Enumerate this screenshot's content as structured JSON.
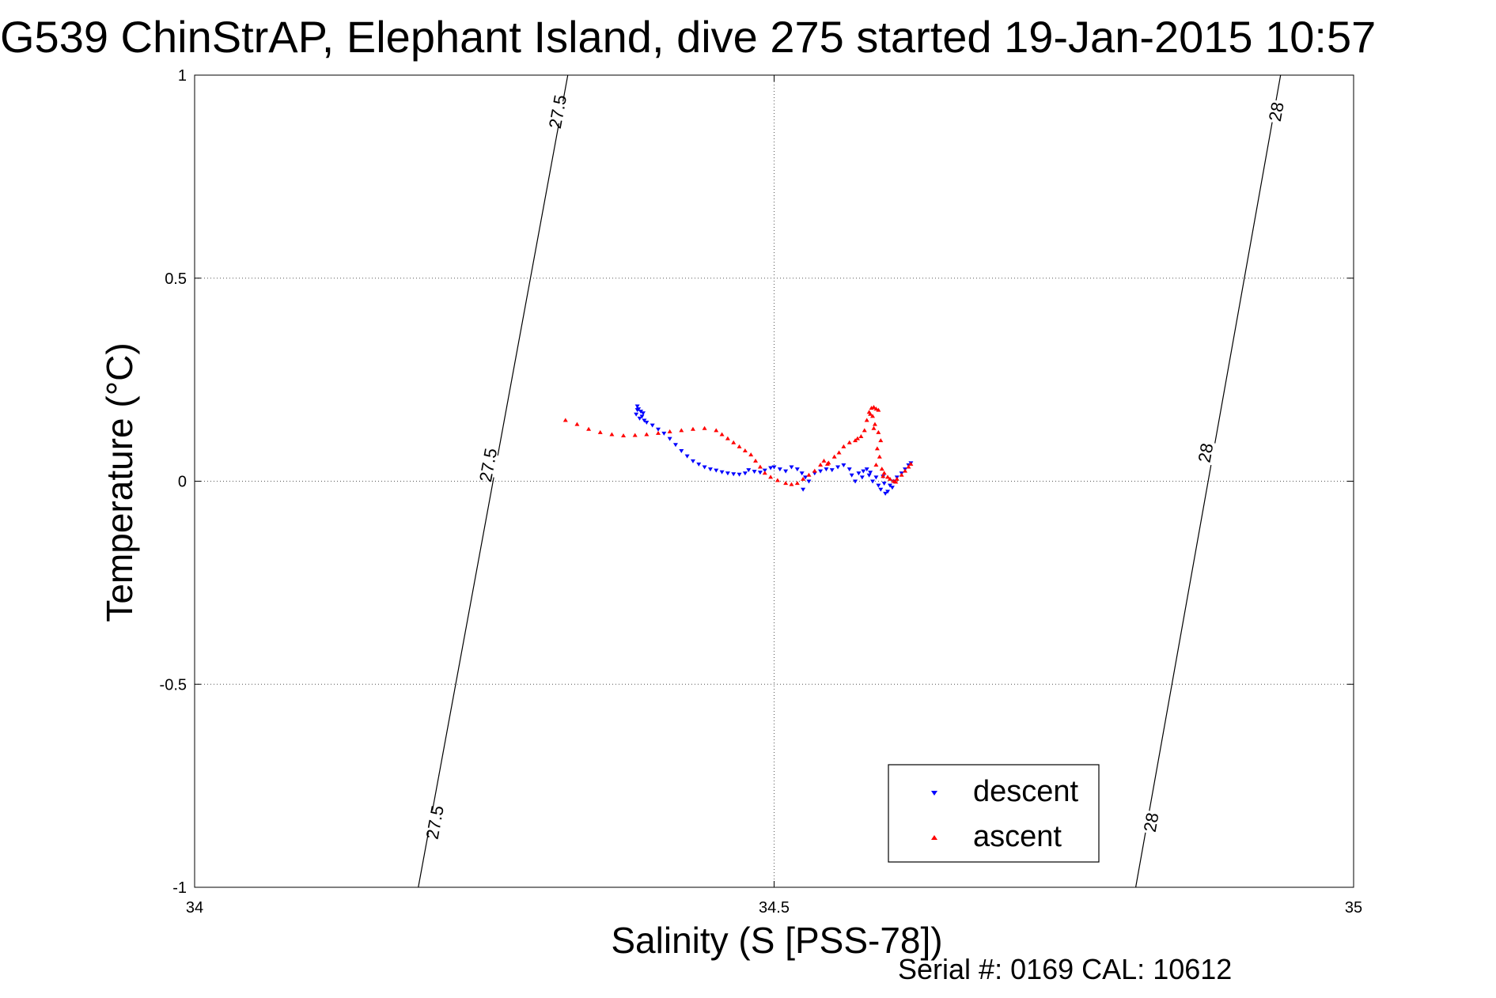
{
  "chart_data": {
    "type": "scatter",
    "title": "G539 ChinStrAP, Elephant Island, dive 275 started 19-Jan-2015 10:57",
    "xlabel": "Salinity (S [PSS-78])",
    "ylabel": "Temperature (°C)",
    "footer": "Serial #: 0169 CAL: 10612",
    "xlim": [
      34,
      35
    ],
    "ylim": [
      -1,
      1
    ],
    "grid": true,
    "legend_position": "bottom-right",
    "x_ticks": [
      {
        "value": 34,
        "label": "34"
      },
      {
        "value": 34.5,
        "label": "34.5"
      },
      {
        "value": 35,
        "label": "35"
      }
    ],
    "y_ticks": [
      {
        "value": 1,
        "label": "1"
      },
      {
        "value": 0.5,
        "label": "0.5"
      },
      {
        "value": 0,
        "label": "0"
      },
      {
        "value": -0.5,
        "label": "-0.5"
      },
      {
        "value": -1,
        "label": "-1"
      }
    ],
    "isopycnals": [
      {
        "label": "27.5",
        "points": [
          [
            34.193,
            -1.0
          ],
          [
            34.324,
            0.0
          ],
          [
            34.322,
            1.0
          ]
        ],
        "label_positions": [
          [
            34.207,
            -0.84
          ],
          [
            34.253,
            0.04
          ],
          [
            34.313,
            0.91
          ]
        ]
      },
      {
        "label": "28",
        "points": [
          [
            34.812,
            -1.0
          ],
          [
            34.869,
            0.0
          ],
          [
            34.937,
            1.0
          ]
        ],
        "label_positions": [
          [
            34.825,
            -0.84
          ],
          [
            34.872,
            0.07
          ],
          [
            34.933,
            0.91
          ]
        ]
      }
    ],
    "series": [
      {
        "name": "descent",
        "color": "#0000ff",
        "marker": "triangle-down",
        "points": [
          [
            34.382,
            0.185
          ],
          [
            34.383,
            0.178
          ],
          [
            34.385,
            0.172
          ],
          [
            34.381,
            0.165
          ],
          [
            34.386,
            0.16
          ],
          [
            34.384,
            0.155
          ],
          [
            34.388,
            0.15
          ],
          [
            34.382,
            0.176
          ],
          [
            34.387,
            0.168
          ],
          [
            34.39,
            0.145
          ],
          [
            34.395,
            0.138
          ],
          [
            34.4,
            0.128
          ],
          [
            34.405,
            0.118
          ],
          [
            34.41,
            0.105
          ],
          [
            34.415,
            0.09
          ],
          [
            34.42,
            0.075
          ],
          [
            34.425,
            0.062
          ],
          [
            34.43,
            0.05
          ],
          [
            34.435,
            0.042
          ],
          [
            34.44,
            0.035
          ],
          [
            34.445,
            0.03
          ],
          [
            34.45,
            0.027
          ],
          [
            34.455,
            0.023
          ],
          [
            34.46,
            0.02
          ],
          [
            34.465,
            0.018
          ],
          [
            34.47,
            0.017
          ],
          [
            34.475,
            0.02
          ],
          [
            34.478,
            0.028
          ],
          [
            34.483,
            0.024
          ],
          [
            34.488,
            0.022
          ],
          [
            34.492,
            0.027
          ],
          [
            34.497,
            0.033
          ],
          [
            34.5,
            0.035
          ],
          [
            34.505,
            0.03
          ],
          [
            34.51,
            0.025
          ],
          [
            34.515,
            0.035
          ],
          [
            34.52,
            0.03
          ],
          [
            34.524,
            0.02
          ],
          [
            34.527,
            0.01
          ],
          [
            34.525,
            -0.02
          ],
          [
            34.53,
            0.0
          ],
          [
            34.535,
            0.02
          ],
          [
            34.54,
            0.025
          ],
          [
            34.545,
            0.03
          ],
          [
            34.55,
            0.028
          ],
          [
            34.555,
            0.035
          ],
          [
            34.56,
            0.04
          ],
          [
            34.565,
            0.03
          ],
          [
            34.567,
            0.015
          ],
          [
            34.57,
            0.0
          ],
          [
            34.573,
            0.02
          ],
          [
            34.576,
            0.01
          ],
          [
            34.58,
            0.03
          ],
          [
            34.582,
            0.015
          ],
          [
            34.585,
            0.0
          ],
          [
            34.588,
            0.01
          ],
          [
            34.59,
            -0.01
          ],
          [
            34.592,
            -0.02
          ],
          [
            34.595,
            -0.005
          ],
          [
            34.596,
            -0.03
          ],
          [
            34.598,
            -0.025
          ],
          [
            34.6,
            -0.01
          ],
          [
            34.603,
            0.0
          ],
          [
            34.606,
            0.01
          ],
          [
            34.61,
            0.02
          ],
          [
            34.613,
            0.03
          ],
          [
            34.616,
            0.04
          ],
          [
            34.618,
            0.045
          ],
          [
            34.577,
            0.025
          ],
          [
            34.583,
            0.022
          ],
          [
            34.594,
            0.012
          ],
          [
            34.602,
            -0.015
          ]
        ]
      },
      {
        "name": "ascent",
        "color": "#ff0000",
        "marker": "triangle-up",
        "points": [
          [
            34.32,
            0.15
          ],
          [
            34.33,
            0.14
          ],
          [
            34.34,
            0.128
          ],
          [
            34.35,
            0.12
          ],
          [
            34.36,
            0.115
          ],
          [
            34.37,
            0.112
          ],
          [
            34.38,
            0.113
          ],
          [
            34.39,
            0.115
          ],
          [
            34.4,
            0.118
          ],
          [
            34.41,
            0.122
          ],
          [
            34.42,
            0.125
          ],
          [
            34.43,
            0.128
          ],
          [
            34.44,
            0.13
          ],
          [
            34.45,
            0.125
          ],
          [
            34.455,
            0.115
          ],
          [
            34.46,
            0.105
          ],
          [
            34.465,
            0.095
          ],
          [
            34.47,
            0.085
          ],
          [
            34.475,
            0.075
          ],
          [
            34.48,
            0.065
          ],
          [
            34.484,
            0.05
          ],
          [
            34.488,
            0.035
          ],
          [
            34.492,
            0.02
          ],
          [
            34.497,
            0.01
          ],
          [
            34.503,
            0.002
          ],
          [
            34.51,
            -0.005
          ],
          [
            34.515,
            -0.008
          ],
          [
            34.52,
            -0.005
          ],
          [
            34.525,
            0.005
          ],
          [
            34.53,
            0.015
          ],
          [
            34.535,
            0.025
          ],
          [
            34.54,
            0.04
          ],
          [
            34.543,
            0.05
          ],
          [
            34.547,
            0.045
          ],
          [
            34.552,
            0.06
          ],
          [
            34.556,
            0.07
          ],
          [
            34.56,
            0.085
          ],
          [
            34.565,
            0.095
          ],
          [
            34.57,
            0.1
          ],
          [
            34.575,
            0.11
          ],
          [
            34.578,
            0.125
          ],
          [
            34.58,
            0.15
          ],
          [
            34.582,
            0.17
          ],
          [
            34.584,
            0.18
          ],
          [
            34.586,
            0.182
          ],
          [
            34.588,
            0.178
          ],
          [
            34.59,
            0.175
          ],
          [
            34.585,
            0.16
          ],
          [
            34.587,
            0.14
          ],
          [
            34.59,
            0.12
          ],
          [
            34.592,
            0.1
          ],
          [
            34.589,
            0.08
          ],
          [
            34.591,
            0.06
          ],
          [
            34.588,
            0.04
          ],
          [
            34.593,
            0.03
          ],
          [
            34.595,
            0.02
          ],
          [
            34.598,
            0.01
          ],
          [
            34.6,
            0.005
          ],
          [
            34.603,
            0.0
          ],
          [
            34.606,
            0.005
          ],
          [
            34.61,
            0.015
          ],
          [
            34.613,
            0.025
          ],
          [
            34.616,
            0.035
          ],
          [
            34.618,
            0.042
          ],
          [
            34.546,
            0.042
          ],
          [
            34.572,
            0.105
          ],
          [
            34.583,
            0.165
          ],
          [
            34.586,
            0.13
          ],
          [
            34.594,
            0.012
          ],
          [
            34.605,
            -0.002
          ]
        ]
      }
    ]
  }
}
